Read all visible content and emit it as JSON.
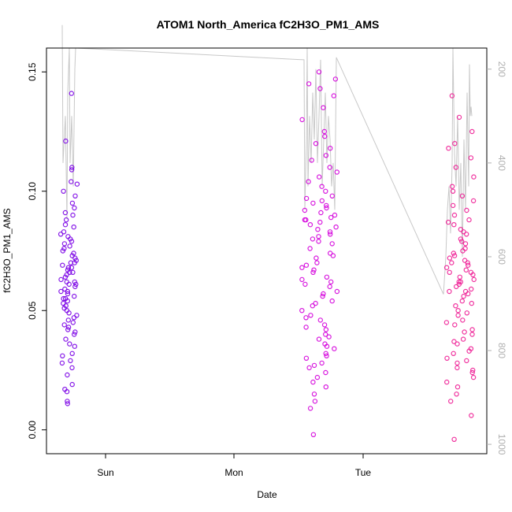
{
  "chart_data": {
    "type": "scatter",
    "title": "ATOM1 North_America fC2H3O_PM1_AMS",
    "xlabel": "Date",
    "ylabel": "fC2H3O_PM1_AMS",
    "x_ticks": [
      "Sun",
      "Mon",
      "Tue"
    ],
    "y_ticks": [
      "0.00",
      "0.05",
      "0.10",
      "0.15"
    ],
    "ylim": [
      -0.01,
      0.16
    ],
    "y2_ticks": [
      "200",
      "400",
      "600",
      "800",
      "1000"
    ],
    "y2lim": [
      1020,
      155
    ],
    "y2_color": "#b0b0b0",
    "grid": false,
    "legend": "none",
    "series": [
      {
        "color": "#7a00e6",
        "values": [
          0.141,
          0.121,
          0.104,
          0.103,
          0.11,
          0.109,
          0.1,
          0.098,
          0.095,
          0.093,
          0.09,
          0.088,
          0.085,
          0.083,
          0.08,
          0.078,
          0.076,
          0.074,
          0.072,
          0.07,
          0.069,
          0.068,
          0.066,
          0.065,
          0.064,
          0.062,
          0.061,
          0.06,
          0.058,
          0.057,
          0.056,
          0.055,
          0.053,
          0.052,
          0.05,
          0.049,
          0.048,
          0.046,
          0.045,
          0.044,
          0.042,
          0.041,
          0.04,
          0.038,
          0.036,
          0.035,
          0.032,
          0.031,
          0.029,
          0.028,
          0.026,
          0.023,
          0.019,
          0.017,
          0.016,
          0.012,
          0.011,
          0.071,
          0.067,
          0.063,
          0.059,
          0.075,
          0.079,
          0.082,
          0.086,
          0.091,
          0.054,
          0.051,
          0.047,
          0.043,
          0.066,
          0.062,
          0.07,
          0.073,
          0.058,
          0.077,
          0.081,
          0.061,
          0.068,
          0.055
        ]
      },
      {
        "color": "#d400dc",
        "values": [
          0.15,
          0.147,
          0.145,
          0.143,
          0.14,
          0.135,
          0.13,
          0.125,
          0.123,
          0.12,
          0.118,
          0.115,
          0.113,
          0.11,
          0.108,
          0.106,
          0.104,
          0.102,
          0.1,
          0.098,
          0.096,
          0.094,
          0.092,
          0.09,
          0.088,
          0.086,
          0.084,
          0.082,
          0.08,
          0.078,
          0.076,
          0.074,
          0.072,
          0.07,
          0.068,
          0.066,
          0.064,
          0.062,
          0.06,
          0.058,
          0.056,
          0.054,
          0.052,
          0.05,
          0.048,
          0.046,
          0.044,
          0.042,
          0.04,
          0.038,
          0.036,
          0.034,
          0.032,
          0.03,
          0.028,
          0.026,
          0.024,
          0.022,
          0.02,
          0.018,
          0.015,
          0.012,
          0.009,
          -0.002,
          0.088,
          0.091,
          0.085,
          0.093,
          0.087,
          0.089,
          0.083,
          0.095,
          0.081,
          0.079,
          0.097,
          0.073,
          0.067,
          0.063,
          0.057,
          0.053,
          0.061,
          0.069,
          0.047,
          0.043,
          0.039,
          0.035,
          0.031,
          0.027
        ]
      },
      {
        "color": "#ee1d95",
        "values": [
          0.14,
          0.131,
          0.125,
          0.12,
          0.118,
          0.114,
          0.11,
          0.106,
          0.102,
          0.1,
          0.098,
          0.096,
          0.094,
          0.092,
          0.09,
          0.088,
          0.086,
          0.084,
          0.082,
          0.08,
          0.078,
          0.076,
          0.074,
          0.072,
          0.07,
          0.068,
          0.066,
          0.064,
          0.062,
          0.06,
          0.058,
          0.056,
          0.054,
          0.052,
          0.05,
          0.048,
          0.046,
          0.044,
          0.042,
          0.04,
          0.038,
          0.036,
          0.034,
          0.032,
          0.03,
          0.028,
          0.026,
          0.024,
          0.022,
          0.02,
          0.018,
          0.015,
          0.012,
          0.006,
          -0.004,
          0.065,
          0.067,
          0.063,
          0.069,
          0.061,
          0.071,
          0.059,
          0.073,
          0.057,
          0.075,
          0.083,
          0.079,
          0.087,
          0.053,
          0.049,
          0.045,
          0.041,
          0.037,
          0.033,
          0.029,
          0.025,
          0.062,
          0.066,
          0.07,
          0.058
        ]
      }
    ]
  }
}
